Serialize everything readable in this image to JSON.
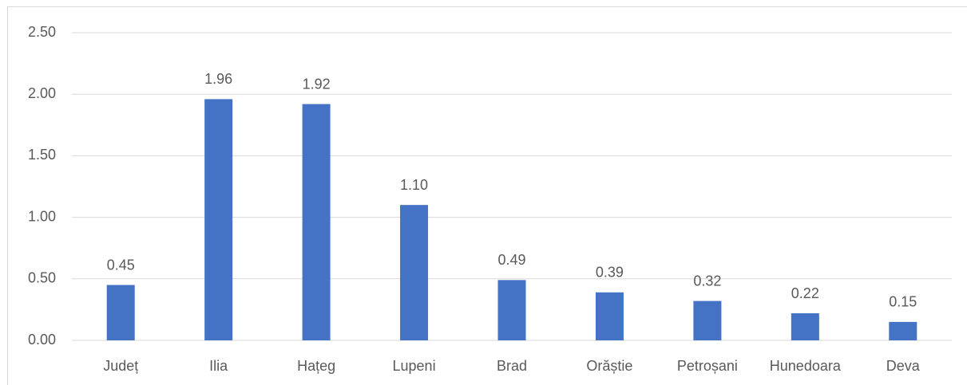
{
  "chart_data": {
    "type": "bar",
    "categories": [
      "Județ",
      "Ilia",
      "Hațeg",
      "Lupeni",
      "Brad",
      "Orăștie",
      "Petroșani",
      "Hunedoara",
      "Deva"
    ],
    "values": [
      0.45,
      1.96,
      1.92,
      1.1,
      0.49,
      0.39,
      0.32,
      0.22,
      0.15
    ],
    "value_labels": [
      "0.45",
      "1.96",
      "1.92",
      "1.10",
      "0.49",
      "0.39",
      "0.32",
      "0.22",
      "0.15"
    ],
    "color": "#4472c4",
    "ylim": [
      0,
      2.5
    ],
    "yticks": [
      {
        "value": 0,
        "label": "0.00"
      },
      {
        "value": 0.5,
        "label": "0.50"
      },
      {
        "value": 1,
        "label": "1.00"
      },
      {
        "value": 1.5,
        "label": "1.50"
      },
      {
        "value": 2,
        "label": "2.00"
      },
      {
        "value": 2.5,
        "label": "2.50"
      }
    ],
    "grid": true
  }
}
